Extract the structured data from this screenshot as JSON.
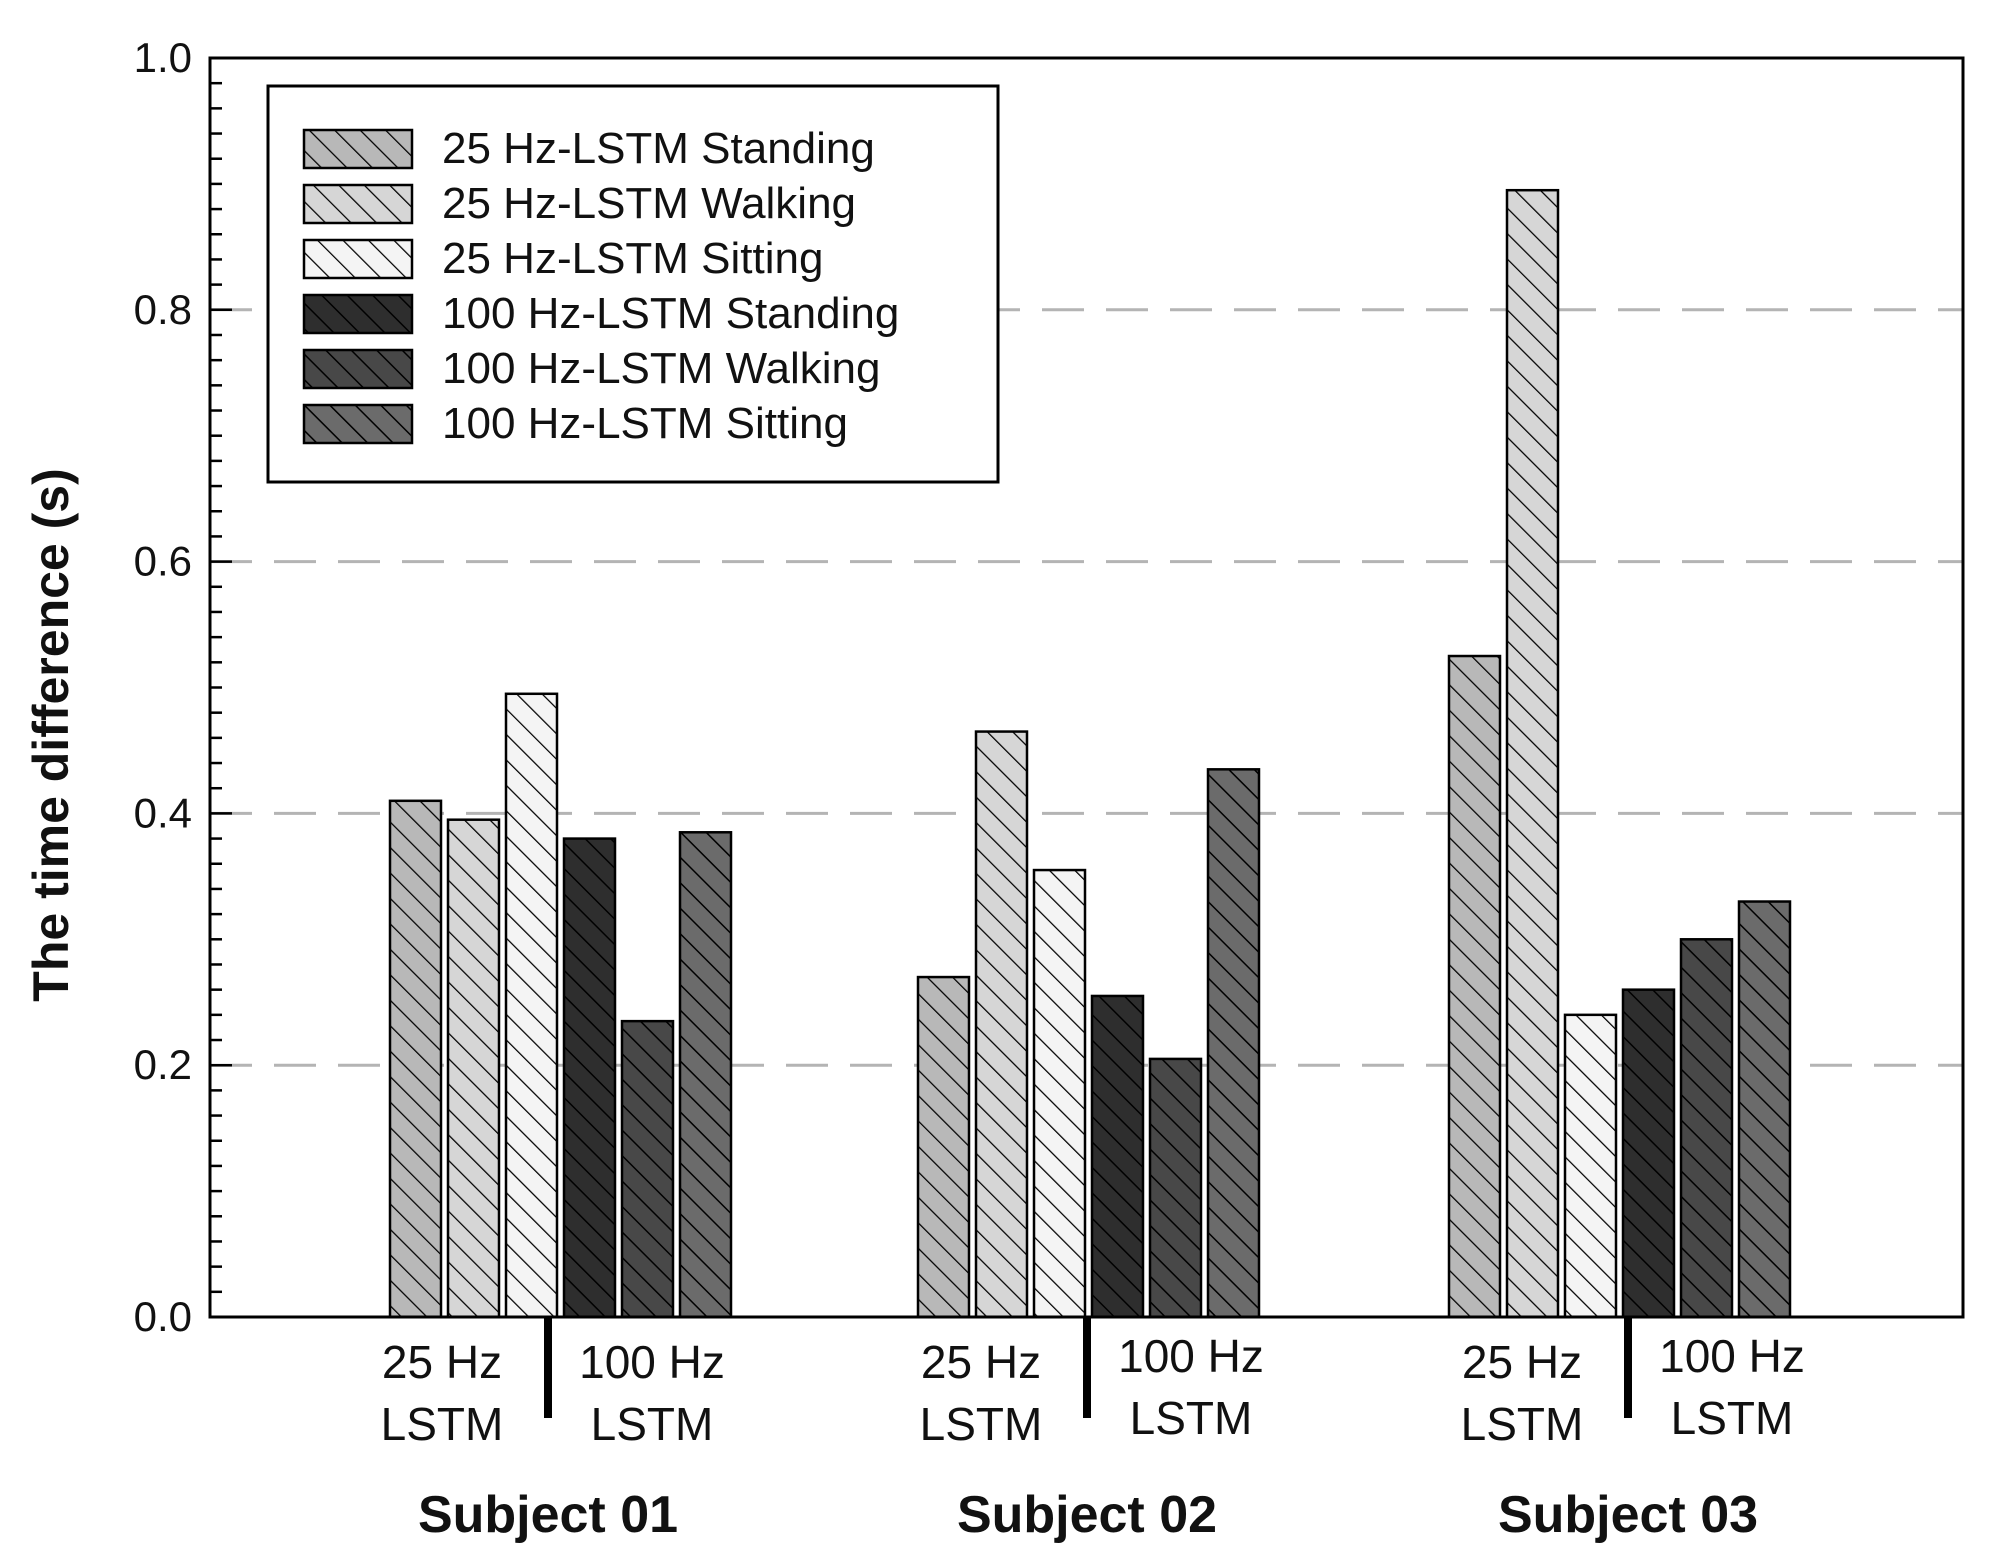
{
  "chart_data": {
    "type": "bar",
    "title": "",
    "xlabel": "",
    "ylabel": "The time difference (s)",
    "ylim": [
      0,
      1.0
    ],
    "yticks": [
      "0.0",
      "0.2",
      "0.4",
      "0.6",
      "0.8",
      "1.0"
    ],
    "grid": "horizontal dashed",
    "legend_position": "top-left",
    "categories": [
      "Subject 01",
      "Subject 02",
      "Subject 03"
    ],
    "subgroup_labels": [
      "25 Hz\nLSTM",
      "100 Hz\nLSTM"
    ],
    "series": [
      {
        "name": "25 Hz-LSTM Standing",
        "color": "#b8b8b8",
        "values": [
          0.41,
          0.27,
          0.525
        ]
      },
      {
        "name": "25 Hz-LSTM Walking",
        "color": "#d6d6d6",
        "values": [
          0.395,
          0.465,
          0.895
        ]
      },
      {
        "name": "25 Hz-LSTM Sitting",
        "color": "#f4f4f4",
        "values": [
          0.495,
          0.355,
          0.24
        ]
      },
      {
        "name": "100 Hz-LSTM Standing",
        "color": "#2e2e2e",
        "values": [
          0.38,
          0.255,
          0.26
        ]
      },
      {
        "name": "100 Hz-LSTM Walking",
        "color": "#484848",
        "values": [
          0.235,
          0.205,
          0.3
        ]
      },
      {
        "name": "100 Hz-LSTM Sitting",
        "color": "#6b6b6b",
        "values": [
          0.385,
          0.435,
          0.33
        ]
      }
    ]
  }
}
